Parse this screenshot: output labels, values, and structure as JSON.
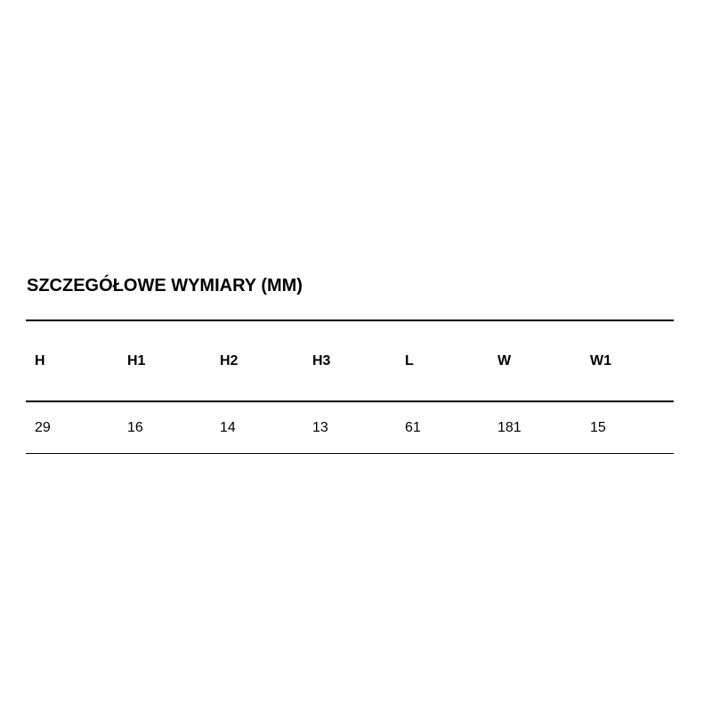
{
  "title": "SZCZEGÓŁOWE WYMIARY (MM)",
  "headers": [
    "H",
    "H1",
    "H2",
    "H3",
    "L",
    "W",
    "W1"
  ],
  "values": [
    "29",
    "16",
    "14",
    "13",
    "61",
    "181",
    "15"
  ]
}
